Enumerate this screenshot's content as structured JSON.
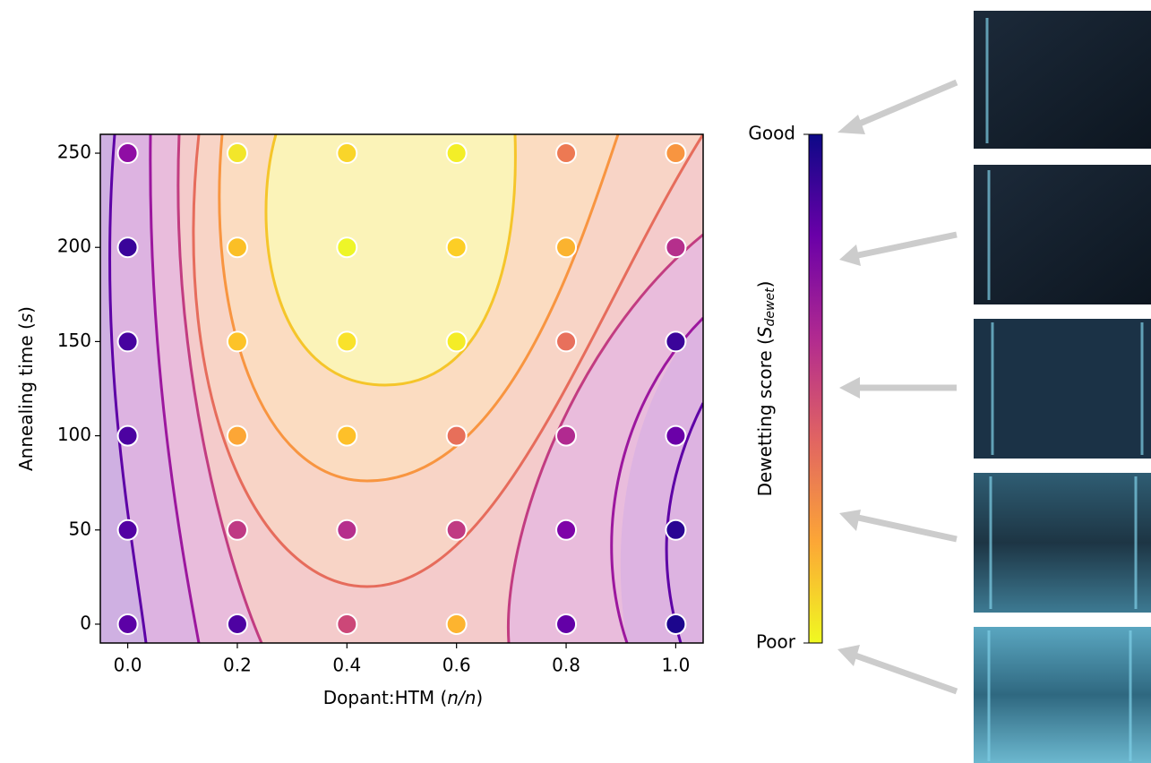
{
  "chart_data": {
    "type": "scatter",
    "x_label": [
      "Dopant:HTM (",
      "n/n",
      ")"
    ],
    "y_label": [
      "Annealing time (",
      "s",
      ")"
    ],
    "xlim": [
      -0.05,
      1.05
    ],
    "ylim": [
      -10,
      260
    ],
    "xticks": [
      {
        "value": 0,
        "label": "0.0"
      },
      0.2,
      0.4,
      0.6,
      0.8,
      {
        "value": 1,
        "label": "1.0"
      }
    ],
    "yticks": [
      0,
      50,
      100,
      150,
      200,
      250
    ],
    "x": [
      0,
      0,
      0,
      0,
      0,
      0,
      0.2,
      0.2,
      0.2,
      0.2,
      0.2,
      0.2,
      0.4,
      0.4,
      0.4,
      0.4,
      0.4,
      0.4,
      0.6,
      0.6,
      0.6,
      0.6,
      0.6,
      0.6,
      0.8,
      0.8,
      0.8,
      0.8,
      0.8,
      0.8,
      1,
      1,
      1,
      1,
      1,
      1
    ],
    "values": [
      0,
      50,
      100,
      150,
      200,
      250,
      0,
      50,
      100,
      150,
      200,
      250,
      0,
      50,
      100,
      150,
      200,
      250,
      0,
      50,
      100,
      150,
      200,
      250,
      0,
      50,
      100,
      150,
      200,
      250,
      0,
      50,
      100,
      150,
      200,
      250
    ],
    "colors": [
      "#5c01a6",
      "#5302a3",
      "#4c02a1",
      "#47039f",
      "#3a049a",
      "#8f0da4",
      "#4e02a2",
      "#bf3984",
      "#fca636",
      "#fdc328",
      "#fbbf26",
      "#f2e62a",
      "#cc4778",
      "#b62f8d",
      "#fec029",
      "#f9e22b",
      "#eef528",
      "#f9d52a",
      "#fdb42f",
      "#c03a83",
      "#e76f5a",
      "#f4ec27",
      "#fcce25",
      "#f3ee27",
      "#6300a7",
      "#7e03a8",
      "#b12a90",
      "#e8705c",
      "#fbb32f",
      "#ed7953",
      "#1c068d",
      "#2a0593",
      "#6a00a8",
      "#3b049a",
      "#b52f8c",
      "#f89540"
    ],
    "colorbar": {
      "label": [
        "Dewetting score (",
        "S",
        "dewet",
        ")"
      ],
      "top_label": "Good",
      "bottom_label": "Poor",
      "cmap": [
        "#0d0887",
        "#6a00a8",
        "#b12a90",
        "#e16462",
        "#fca636",
        "#f0f921"
      ]
    }
  }
}
